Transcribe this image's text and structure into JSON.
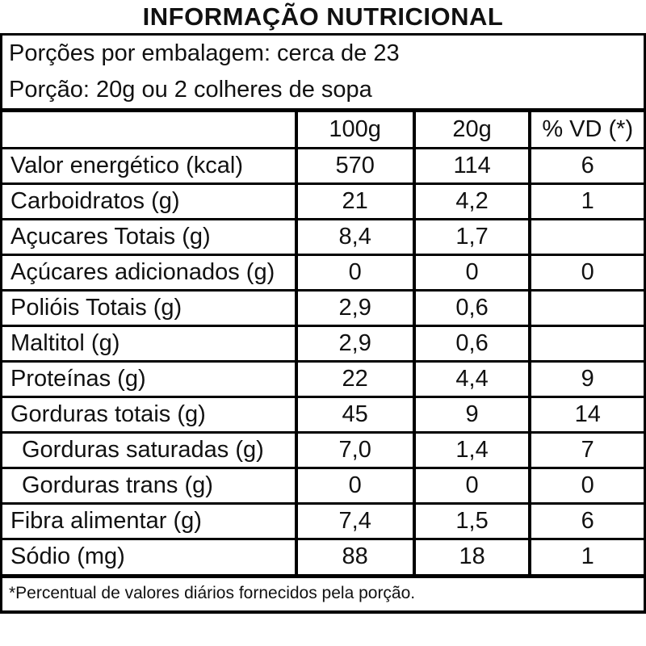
{
  "title": "INFORMAÇÃO NUTRICIONAL",
  "serving_info": {
    "line1": "Porções por embalagem: cerca de 23",
    "line2": "Porção: 20g ou 2 colheres de sopa"
  },
  "table": {
    "columns": [
      "",
      "100g",
      "20g",
      "% VD (*)"
    ],
    "rows": [
      {
        "label": "Valor energético (kcal)",
        "per100g": "570",
        "per20g": "114",
        "vd": "6",
        "indent": false
      },
      {
        "label": "Carboidratos (g)",
        "per100g": "21",
        "per20g": "4,2",
        "vd": "1",
        "indent": false
      },
      {
        "label": "Açucares Totais (g)",
        "per100g": "8,4",
        "per20g": "1,7",
        "vd": "",
        "indent": false
      },
      {
        "label": "Açúcares adicionados (g)",
        "per100g": "0",
        "per20g": "0",
        "vd": "0",
        "indent": false
      },
      {
        "label": "Polióis Totais (g)",
        "per100g": "2,9",
        "per20g": "0,6",
        "vd": "",
        "indent": false
      },
      {
        "label": "Maltitol (g)",
        "per100g": "2,9",
        "per20g": "0,6",
        "vd": "",
        "indent": false
      },
      {
        "label": "Proteínas (g)",
        "per100g": "22",
        "per20g": "4,4",
        "vd": "9",
        "indent": false
      },
      {
        "label": "Gorduras totais (g)",
        "per100g": "45",
        "per20g": "9",
        "vd": "14",
        "indent": false
      },
      {
        "label": "Gorduras saturadas (g)",
        "per100g": "7,0",
        "per20g": "1,4",
        "vd": "7",
        "indent": true
      },
      {
        "label": "Gorduras trans (g)",
        "per100g": "0",
        "per20g": "0",
        "vd": "0",
        "indent": true
      },
      {
        "label": "Fibra alimentar (g)",
        "per100g": "7,4",
        "per20g": "1,5",
        "vd": "6",
        "indent": false
      },
      {
        "label": "Sódio (mg)",
        "per100g": "88",
        "per20g": "18",
        "vd": "1",
        "indent": false
      }
    ]
  },
  "footnote": "*Percentual de valores diários fornecidos pela porção.",
  "colors": {
    "border": "#000000",
    "text": "#111111",
    "background": "#ffffff"
  }
}
